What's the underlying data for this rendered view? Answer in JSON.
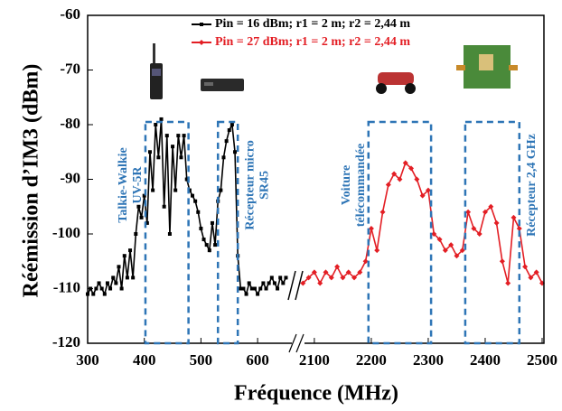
{
  "chart_data": {
    "type": "line",
    "ylabel": "Réémission d’IM3 (dBm)",
    "xlabel": "Fréquence (MHz)",
    "ylim": [
      -120,
      -60
    ],
    "yticks": [
      -120,
      -110,
      -100,
      -90,
      -80,
      -70,
      -60
    ],
    "panels": [
      {
        "xlim": [
          300,
          662
        ],
        "xticks": [
          300,
          400,
          500,
          600
        ]
      },
      {
        "xlim": [
          2070,
          2500
        ],
        "xticks": [
          2100,
          2200,
          2300,
          2400,
          2500
        ]
      }
    ],
    "series": [
      {
        "name": "Pin = 16 dBm; r1 = 2 m; r2 = 2,44 m",
        "color": "#000000",
        "panel": 0,
        "x": [
          300,
          305,
          310,
          315,
          320,
          325,
          330,
          335,
          340,
          345,
          350,
          355,
          360,
          365,
          370,
          375,
          380,
          385,
          390,
          395,
          400,
          405,
          410,
          415,
          420,
          425,
          430,
          435,
          440,
          445,
          450,
          455,
          460,
          465,
          470,
          475,
          480,
          485,
          490,
          495,
          500,
          505,
          510,
          515,
          520,
          525,
          530,
          535,
          540,
          545,
          550,
          555,
          560,
          565,
          570,
          575,
          580,
          585,
          590,
          595,
          600,
          605,
          610,
          615,
          620,
          625,
          630,
          635,
          640,
          645,
          650
        ],
        "values": [
          -111,
          -110,
          -111,
          -110,
          -109,
          -110,
          -111,
          -109,
          -110,
          -108,
          -109,
          -106,
          -110,
          -104,
          -108,
          -103,
          -108,
          -100,
          -95,
          -97,
          -93,
          -98,
          -85,
          -92,
          -80,
          -86,
          -79,
          -95,
          -82,
          -100,
          -84,
          -92,
          -82,
          -86,
          -82,
          -90,
          -92,
          -93,
          -94,
          -96,
          -99,
          -101,
          -102,
          -103,
          -98,
          -102,
          -94,
          -92,
          -86,
          -83,
          -81,
          -80,
          -85,
          -104,
          -110,
          -110,
          -111,
          -109,
          -110,
          -110,
          -111,
          -110,
          -109,
          -110,
          -109,
          -108,
          -109,
          -110,
          -108,
          -109,
          -108
        ]
      },
      {
        "name": "Pin = 27 dBm; r1 = 2 m; r2 = 2,44 m",
        "color": "#e31e24",
        "panel": 1,
        "x": [
          2080,
          2090,
          2100,
          2110,
          2120,
          2130,
          2140,
          2150,
          2160,
          2170,
          2180,
          2190,
          2200,
          2210,
          2220,
          2230,
          2240,
          2250,
          2260,
          2270,
          2280,
          2290,
          2300,
          2310,
          2320,
          2330,
          2340,
          2350,
          2360,
          2370,
          2380,
          2390,
          2400,
          2410,
          2420,
          2430,
          2440,
          2450,
          2460,
          2470,
          2480,
          2490,
          2500
        ],
        "values": [
          -109,
          -108,
          -107,
          -109,
          -107,
          -108,
          -106,
          -108,
          -107,
          -108,
          -107,
          -105,
          -99,
          -103,
          -96,
          -91,
          -89,
          -90,
          -87,
          -88,
          -90,
          -93,
          -92,
          -100,
          -101,
          -103,
          -102,
          -104,
          -103,
          -96,
          -99,
          -100,
          -96,
          -95,
          -98,
          -105,
          -109,
          -97,
          -99,
          -106,
          -108,
          -107,
          -109
        ]
      }
    ],
    "annotations": [
      {
        "lines": [
          "Talkie-Walkie",
          "UV-5R"
        ],
        "panel": 0,
        "xrange": [
          402,
          478
        ],
        "ytop": -79.5
      },
      {
        "lines": [
          "Récepteur micro",
          "SR45"
        ],
        "panel": 0,
        "xrange": [
          530,
          565
        ],
        "ytop": -79.5
      },
      {
        "lines": [
          "Voiture",
          "télécommandée"
        ],
        "panel": 1,
        "xrange": [
          2195,
          2305
        ],
        "ytop": -79.5
      },
      {
        "lines": [
          "Récepteur 2,4 GHz"
        ],
        "panel": 1,
        "xrange": [
          2365,
          2460
        ],
        "ytop": -79.5
      }
    ]
  }
}
